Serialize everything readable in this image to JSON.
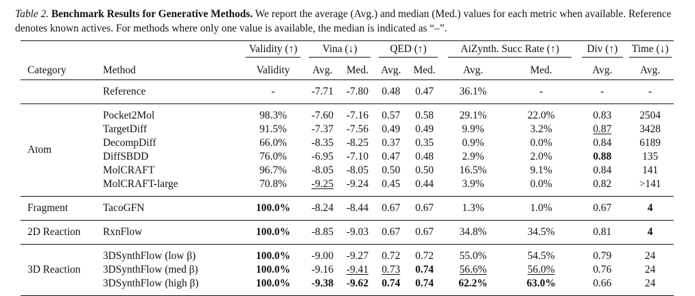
{
  "caption": {
    "label": "Table 2.",
    "title": "Benchmark Results for Generative Methods.",
    "text": "We report the average (Avg.) and median (Med.) values for each metric when available. Reference denotes known actives. For methods where only one value is available, the median is indicated as “–”."
  },
  "header": {
    "groups": [
      "Validity (↑)",
      "Vina (↓)",
      "QED (↑)",
      "AiZynth. Succ Rate (↑)",
      "Div (↑)",
      "Time (↓)"
    ],
    "category": "Category",
    "method": "Method",
    "validity": "Validity",
    "avg": "Avg.",
    "med": "Med."
  },
  "reference": {
    "method": "Reference",
    "cells": [
      "-",
      "-7.71",
      "-7.80",
      "0.48",
      "0.47",
      "36.1%",
      "-",
      "-",
      "-"
    ]
  },
  "sections": [
    {
      "category": "Atom",
      "rows": [
        {
          "method": "Pocket2Mol",
          "cells": [
            "98.3%",
            "-7.60",
            "-7.16",
            "0.57",
            "0.58",
            "29.1%",
            "22.0%",
            "0.83",
            "2504"
          ]
        },
        {
          "method": "TargetDiff",
          "cells": [
            "91.5%",
            "-7.37",
            "-7.56",
            "0.49",
            "0.49",
            "9.9%",
            "3.2%",
            "0.87",
            "3428"
          ]
        },
        {
          "method": "DecompDiff",
          "cells": [
            "66.0%",
            "-8.35",
            "-8.25",
            "0.37",
            "0.35",
            "0.9%",
            "0.0%",
            "0.84",
            "6189"
          ]
        },
        {
          "method": "DiffSBDD",
          "cells": [
            "76.0%",
            "-6.95",
            "-7.10",
            "0.47",
            "0.48",
            "2.9%",
            "2.0%",
            "0.88",
            "135"
          ]
        },
        {
          "method": "MolCRAFT",
          "cells": [
            "96.7%",
            "-8.05",
            "-8.05",
            "0.50",
            "0.50",
            "16.5%",
            "9.1%",
            "0.84",
            "141"
          ]
        },
        {
          "method": "MolCRAFT-large",
          "cells": [
            "70.8%",
            "-9.25",
            "-9.24",
            "0.45",
            "0.44",
            "3.9%",
            "0.0%",
            "0.82",
            ">141"
          ]
        }
      ]
    },
    {
      "category": "Fragment",
      "rows": [
        {
          "method": "TacoGFN",
          "cells": [
            "100.0%",
            "-8.24",
            "-8.44",
            "0.67",
            "0.67",
            "1.3%",
            "1.0%",
            "0.67",
            "4"
          ]
        }
      ]
    },
    {
      "category": "2D Reaction",
      "rows": [
        {
          "method": "RxnFlow",
          "cells": [
            "100.0%",
            "-8.85",
            "-9.03",
            "0.67",
            "0.67",
            "34.8%",
            "34.5%",
            "0.81",
            "4"
          ]
        }
      ]
    },
    {
      "category": "3D Reaction",
      "rows": [
        {
          "method": "3DSynthFlow (low β)",
          "cells": [
            "100.0%",
            "-9.00",
            "-9.27",
            "0.72",
            "0.72",
            "55.0%",
            "54.5%",
            "0.79",
            "24"
          ]
        },
        {
          "method": "3DSynthFlow (med β)",
          "cells": [
            "100.0%",
            "-9.16",
            "-9.41",
            "0.73",
            "0.74",
            "56.6%",
            "56.0%",
            "0.76",
            "24"
          ]
        },
        {
          "method": "3DSynthFlow (high β)",
          "cells": [
            "100.0%",
            "-9.38",
            "-9.62",
            "0.74",
            "0.74",
            "62.2%",
            "63.0%",
            "0.66",
            "24"
          ]
        }
      ]
    }
  ]
}
